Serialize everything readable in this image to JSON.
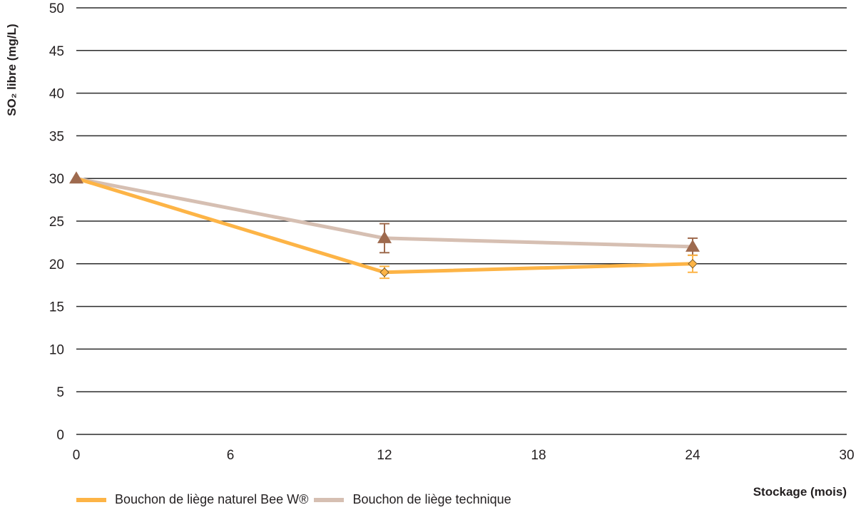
{
  "chart_data": {
    "type": "line",
    "title": "",
    "xlabel": "Stockage (mois)",
    "ylabel": "SO₂ libre (mg/L)",
    "x": [
      0,
      12,
      24
    ],
    "xlim": [
      0,
      30
    ],
    "ylim": [
      0,
      50
    ],
    "xticks": [
      0,
      6,
      12,
      18,
      24,
      30
    ],
    "yticks": [
      0,
      5,
      10,
      15,
      20,
      25,
      30,
      35,
      40,
      45,
      50
    ],
    "grid": "horizontal",
    "legend_position": "bottom-left",
    "series": [
      {
        "name": "Bouchon de liège naturel Bee W®",
        "values": [
          30,
          19,
          20
        ],
        "error": [
          0,
          0.7,
          1.0
        ],
        "color": "#fdb446",
        "marker": "diamond"
      },
      {
        "name": "Bouchon de liège technique",
        "values": [
          30,
          23,
          22
        ],
        "error": [
          0,
          1.7,
          1.0
        ],
        "color": "#d6bfb2",
        "marker": "triangle",
        "marker_color": "#9e6a4e"
      }
    ]
  },
  "legend": {
    "items": [
      {
        "label": "Bouchon de liège naturel Bee W®",
        "color": "#fdb446"
      },
      {
        "label": "Bouchon de liège technique",
        "color": "#d6bfb2"
      }
    ]
  },
  "axes": {
    "x_title": "Stockage (mois)",
    "y_title": "SO₂ libre (mg/L)"
  }
}
